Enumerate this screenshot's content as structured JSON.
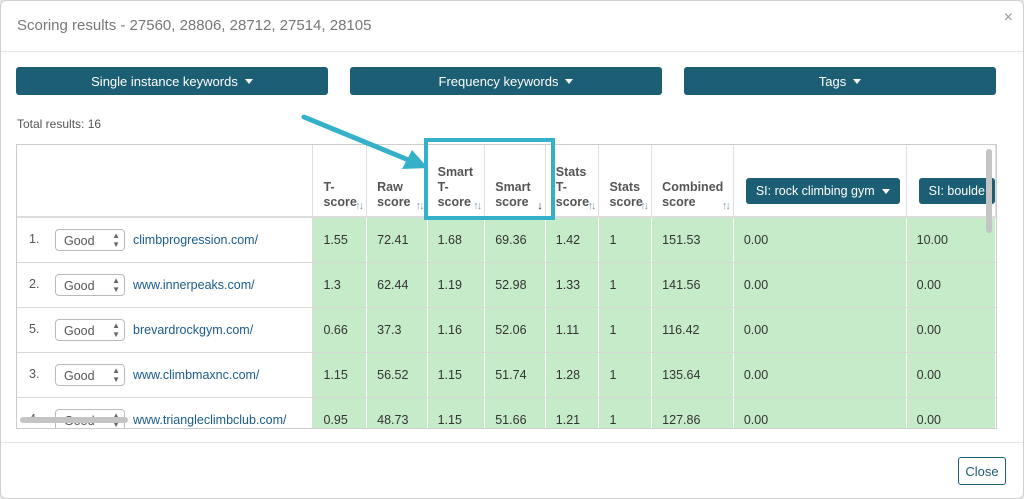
{
  "modal": {
    "title": "Scoring results - 27560, 28806, 28712, 27514, 28105",
    "close_x": "×"
  },
  "filters": {
    "single_instance": "Single instance keywords",
    "frequency": "Frequency keywords",
    "tags": "Tags"
  },
  "total": "Total results: 16",
  "columns": [
    {
      "label": "T-\nscore"
    },
    {
      "label": "Raw\nscore"
    },
    {
      "label": "Smart\nT-\nscore"
    },
    {
      "label": "Smart\nscore"
    },
    {
      "label": "Stats\nT-\nscore"
    },
    {
      "label": "Stats\nscore"
    },
    {
      "label": "Combined\nscore"
    },
    {
      "label": "SI: rock climbing gym"
    },
    {
      "label": "SI: boulde"
    }
  ],
  "rows": [
    {
      "num": "1.",
      "rating": "Good",
      "site": "climbprogression.com/",
      "cells": [
        "1.55",
        "72.41",
        "1.68",
        "69.36",
        "1.42",
        "1",
        "151.53",
        "0.00",
        "10.00"
      ]
    },
    {
      "num": "2.",
      "rating": "Good",
      "site": "www.innerpeaks.com/",
      "cells": [
        "1.3",
        "62.44",
        "1.19",
        "52.98",
        "1.33",
        "1",
        "141.56",
        "0.00",
        "0.00"
      ]
    },
    {
      "num": "5.",
      "rating": "Good",
      "site": "brevardrockgym.com/",
      "cells": [
        "0.66",
        "37.3",
        "1.16",
        "52.06",
        "1.11",
        "1",
        "116.42",
        "0.00",
        "0.00"
      ]
    },
    {
      "num": "3.",
      "rating": "Good",
      "site": "www.climbmaxnc.com/",
      "cells": [
        "1.15",
        "56.52",
        "1.15",
        "51.74",
        "1.28",
        "1",
        "135.64",
        "0.00",
        "0.00"
      ]
    },
    {
      "num": "4.",
      "rating": "Good",
      "site": "www.triangleclimbclub.com/",
      "cells": [
        "0.95",
        "48.73",
        "1.15",
        "51.66",
        "1.21",
        "1",
        "127.86",
        "0.00",
        "0.00"
      ]
    }
  ],
  "footer": {
    "close": "Close"
  },
  "colors": {
    "accent": "#1c5e73",
    "highlight": "#34b1c8",
    "cell_green": "#c5ebc9",
    "link": "#1a5c8a"
  }
}
